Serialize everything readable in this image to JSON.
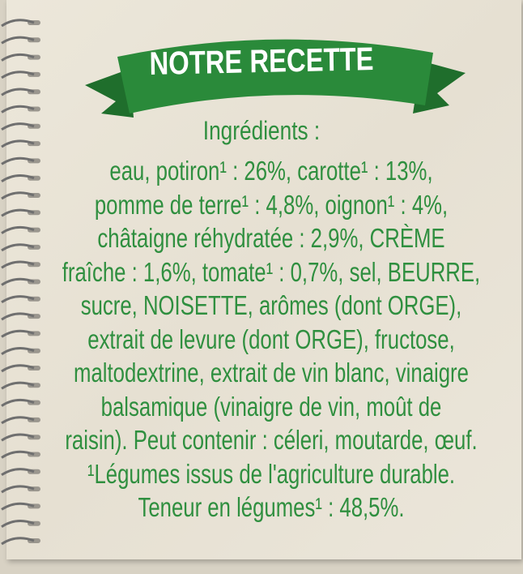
{
  "banner": {
    "title": "NOTRE RECETTE",
    "color": "#2a8a3a"
  },
  "heading": "Ingrédients :",
  "text_color": "#2f8f3f",
  "lines": [
    "eau, potiron¹ : 26%, carotte¹ : 13%,",
    "pomme de terre¹ : 4,8%, oignon¹ : 4%,",
    "châtaigne réhydratée : 2,9%, CRÈME",
    "fraîche : 1,6%, tomate¹ : 0,7%, sel, BEURRE,",
    "sucre, NOISETTE, arômes (dont ORGE),",
    "extrait de levure (dont ORGE), fructose,",
    "maltodextrine, extrait de vin blanc, vinaigre",
    "balsamique (vinaigre de vin, moût de",
    "raisin). Peut contenir : céleri, moutarde, œuf.",
    "¹Légumes issus de l'agriculture durable.",
    "Teneur en légumes¹ : 48,5%."
  ]
}
